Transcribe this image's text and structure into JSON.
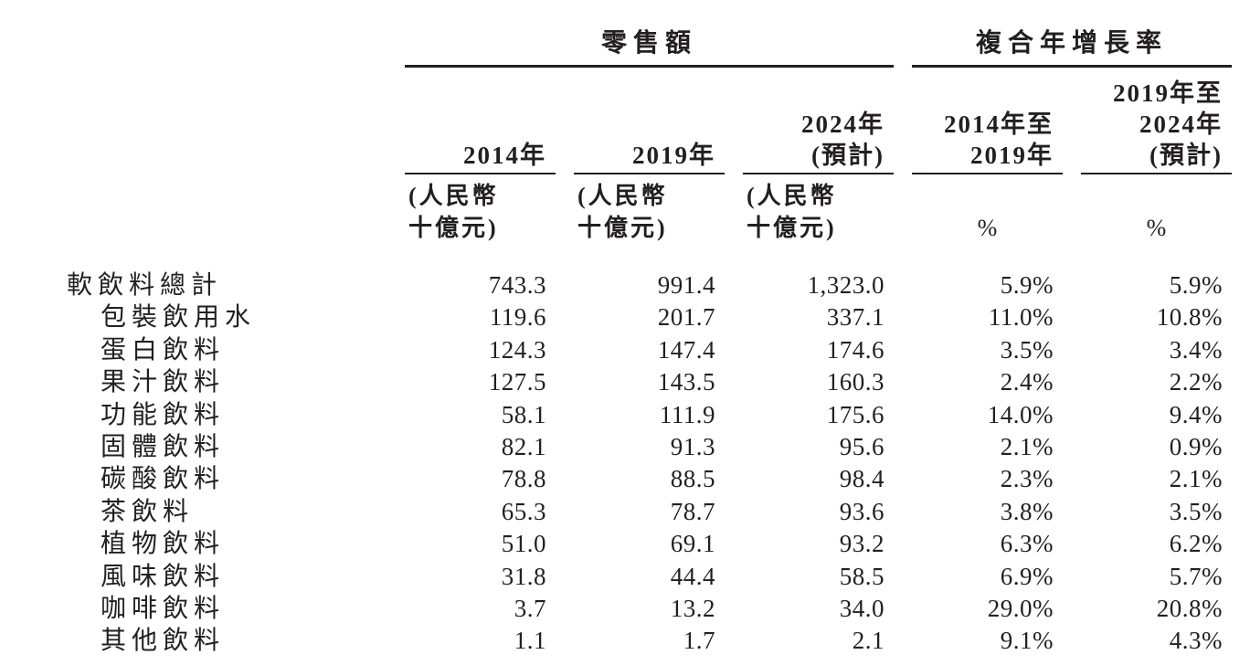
{
  "page": {
    "background_color": "#ffffff",
    "text_color": "#231f20",
    "rule_color": "#231f20"
  },
  "table": {
    "group_headers": {
      "retail": "零售額",
      "cagr": "複合年增長率"
    },
    "columns": [
      {
        "id": "2014",
        "header_lines": [
          "2014年"
        ],
        "units": [
          "(人民幣",
          "十億元)"
        ]
      },
      {
        "id": "2019",
        "header_lines": [
          "2019年"
        ],
        "units": [
          "(人民幣",
          "十億元)"
        ]
      },
      {
        "id": "2024-est",
        "header_lines": [
          "2024年",
          "(預計)"
        ],
        "units": [
          "(人民幣",
          "十億元)"
        ]
      },
      {
        "id": "cagr-2014-2019",
        "header_lines": [
          "2014年至",
          "2019年"
        ],
        "units": [
          "%"
        ]
      },
      {
        "id": "cagr-2019-2024",
        "header_lines": [
          "2019年至",
          "2024年",
          "(預計)"
        ],
        "units": [
          "%"
        ]
      }
    ],
    "rows": [
      {
        "label": "軟飲料總計",
        "values": [
          "743.3",
          "991.4",
          "1,323.0",
          "5.9%",
          "5.9%"
        ]
      },
      {
        "label": "包裝飲用水",
        "values": [
          "119.6",
          "201.7",
          "337.1",
          "11.0%",
          "10.8%"
        ]
      },
      {
        "label": "蛋白飲料",
        "values": [
          "124.3",
          "147.4",
          "174.6",
          "3.5%",
          "3.4%"
        ]
      },
      {
        "label": "果汁飲料",
        "values": [
          "127.5",
          "143.5",
          "160.3",
          "2.4%",
          "2.2%"
        ]
      },
      {
        "label": "功能飲料",
        "values": [
          "58.1",
          "111.9",
          "175.6",
          "14.0%",
          "9.4%"
        ]
      },
      {
        "label": "固體飲料",
        "values": [
          "82.1",
          "91.3",
          "95.6",
          "2.1%",
          "0.9%"
        ]
      },
      {
        "label": "碳酸飲料",
        "values": [
          "78.8",
          "88.5",
          "98.4",
          "2.3%",
          "2.1%"
        ]
      },
      {
        "label": "茶飲料",
        "values": [
          "65.3",
          "78.7",
          "93.6",
          "3.8%",
          "3.5%"
        ]
      },
      {
        "label": "植物飲料",
        "values": [
          "51.0",
          "69.1",
          "93.2",
          "6.3%",
          "6.2%"
        ]
      },
      {
        "label": "風味飲料",
        "values": [
          "31.8",
          "44.4",
          "58.5",
          "6.9%",
          "5.7%"
        ]
      },
      {
        "label": "咖啡飲料",
        "values": [
          "3.7",
          "13.2",
          "34.0",
          "29.0%",
          "20.8%"
        ]
      },
      {
        "label": "其他飲料",
        "values": [
          "1.1",
          "1.7",
          "2.1",
          "9.1%",
          "4.3%"
        ]
      }
    ]
  }
}
